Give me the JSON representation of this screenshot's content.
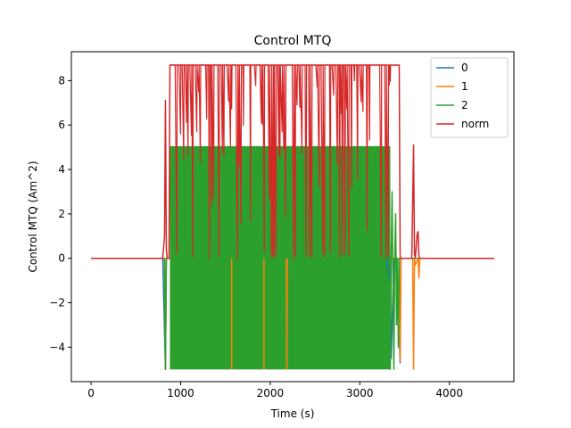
{
  "chart_data": {
    "type": "line",
    "title": "Control MTQ",
    "xlabel": "Time (s)",
    "ylabel": "Control MTQ (Am^2)",
    "xlim": [
      -220,
      4720
    ],
    "ylim": [
      -5.55,
      9.3
    ],
    "xticks": [
      0,
      1000,
      2000,
      3000,
      4000
    ],
    "yticks": [
      -4,
      -2,
      0,
      2,
      4,
      6,
      8
    ],
    "grid": false,
    "legend_position": "top-right",
    "colors": {
      "0": "#1f77b4",
      "1": "#ff7f0e",
      "2": "#2ca02c",
      "norm": "#d62728"
    },
    "series": [
      {
        "name": "0",
        "color": "#1f77b4",
        "x": [
          0,
          800,
          830,
          840,
          850,
          3300,
          3330,
          3340,
          3350,
          3380,
          3410,
          3450,
          3460,
          3470,
          4500
        ],
        "y": [
          0,
          0,
          -5.0,
          0,
          0,
          0,
          -1.0,
          0,
          -4.5,
          0,
          0,
          -4.7,
          0,
          0,
          0
        ]
      },
      {
        "name": "1",
        "color": "#ff7f0e",
        "x": [
          0,
          820,
          830,
          840,
          2180,
          2185,
          2190,
          3440,
          3450,
          3460,
          3590,
          3600,
          3610,
          3620,
          3650,
          3660,
          3670,
          4500
        ],
        "y": [
          0,
          0,
          -5.0,
          0,
          0,
          -5.0,
          0,
          0,
          -4.6,
          0,
          0,
          -5.0,
          0,
          -0.3,
          0,
          -0.9,
          0,
          0
        ]
      },
      {
        "name": "2",
        "color": "#2ca02c",
        "x": [
          0,
          820,
          830,
          840,
          870,
          880,
          3320,
          3330,
          3340,
          3350,
          3360,
          3380,
          3390,
          3400,
          3410,
          3420,
          3430,
          3440,
          3450,
          4500
        ],
        "y": [
          0,
          0,
          -5.0,
          0,
          0,
          0,
          0,
          4.0,
          -5.0,
          0,
          3.0,
          -5.0,
          0,
          2.0,
          -3.0,
          0,
          -4.0,
          0,
          0,
          0
        ]
      },
      {
        "name": "norm",
        "color": "#d62728",
        "x": [
          0,
          700,
          800,
          820,
          830,
          840,
          850,
          870,
          880,
          3440,
          3450,
          3460,
          3480,
          3580,
          3600,
          3610,
          3620,
          3640,
          3650,
          3660,
          3670,
          3700,
          4500
        ],
        "y": [
          0,
          0,
          0,
          1.0,
          7.1,
          0.4,
          0,
          0,
          8.7,
          8.7,
          0.1,
          0,
          0,
          0,
          5.1,
          0.2,
          0,
          1.1,
          1.2,
          0.1,
          0,
          0,
          0
        ]
      }
    ],
    "band": {
      "x_start": 880,
      "x_end": 3340,
      "green_range": [
        -5.0,
        5.05
      ],
      "red_high": 8.7
    }
  }
}
